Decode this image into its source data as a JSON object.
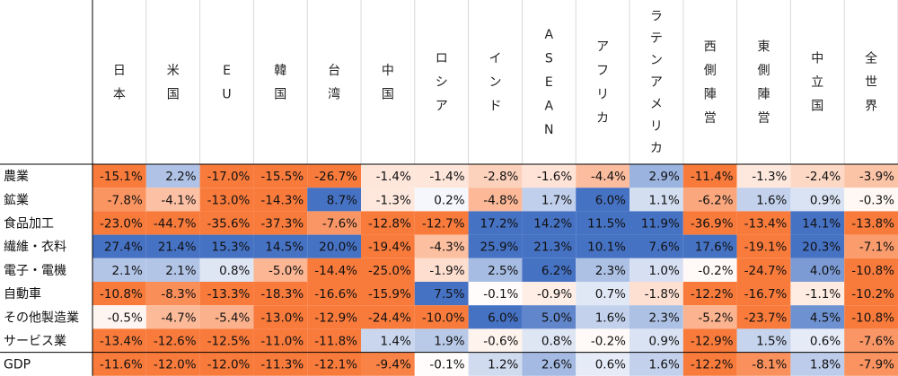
{
  "chart_data": {
    "type": "heatmap",
    "columns": [
      "日本",
      "米国",
      "EU",
      "韓国",
      "台湾",
      "中国",
      "ロシア",
      "インド",
      "ASEAN",
      "アフリカ",
      "ラテンアメリカ",
      "西側陣営",
      "東側陣営",
      "中立国",
      "全世界"
    ],
    "rows": [
      "農業",
      "鉱業",
      "食品加工",
      "繊維・衣料",
      "電子・電機",
      "自動車",
      "その他製造業",
      "サービス業",
      "GDP"
    ],
    "values": [
      [
        -15.1,
        2.2,
        -17.0,
        -15.5,
        -26.7,
        -1.4,
        -1.4,
        -2.8,
        -1.6,
        -4.4,
        2.9,
        -11.4,
        -1.3,
        -2.4,
        -3.9
      ],
      [
        -7.8,
        -4.1,
        -13.0,
        -14.3,
        8.7,
        -1.3,
        0.2,
        -4.8,
        1.7,
        6.0,
        1.1,
        -6.2,
        1.6,
        0.9,
        -0.3
      ],
      [
        -23.0,
        -44.7,
        -35.6,
        -37.3,
        -7.6,
        -12.8,
        -12.7,
        17.2,
        14.2,
        11.5,
        11.9,
        -36.9,
        -13.4,
        14.1,
        -13.8
      ],
      [
        27.4,
        21.4,
        15.3,
        14.5,
        20.0,
        -19.4,
        -4.3,
        25.9,
        21.3,
        10.1,
        7.6,
        17.6,
        -19.1,
        20.3,
        -7.1
      ],
      [
        2.1,
        2.1,
        0.8,
        -5.0,
        -14.4,
        -25.0,
        -1.9,
        2.5,
        6.2,
        2.3,
        1.0,
        -0.2,
        -24.7,
        4.0,
        -10.8
      ],
      [
        -10.8,
        -8.3,
        -13.3,
        -18.3,
        -16.6,
        -15.9,
        7.5,
        -0.1,
        -0.9,
        0.7,
        -1.8,
        -12.2,
        -16.7,
        -1.1,
        -10.2
      ],
      [
        -0.5,
        -4.7,
        -5.4,
        -13.0,
        -12.9,
        -24.4,
        -10.0,
        6.0,
        5.0,
        1.6,
        2.3,
        -5.2,
        -23.7,
        4.5,
        -10.8
      ],
      [
        -13.4,
        -12.6,
        -12.5,
        -11.0,
        -11.8,
        1.4,
        1.9,
        -0.6,
        0.8,
        -0.2,
        0.9,
        -12.9,
        1.5,
        0.6,
        -7.6
      ],
      [
        -11.6,
        -12.0,
        -12.0,
        -11.3,
        -12.1,
        -9.4,
        -0.1,
        1.2,
        2.6,
        0.6,
        1.6,
        -12.2,
        -8.1,
        1.8,
        -7.9
      ]
    ],
    "value_suffix": "%",
    "colors": {
      "negative": "#f97b3c",
      "positive": "#4672c4",
      "neutral": "#ffffff",
      "grid": "#d9d9d9",
      "axis": "#000000"
    },
    "color_saturation": {
      "negative": 10,
      "positive": 6
    }
  }
}
